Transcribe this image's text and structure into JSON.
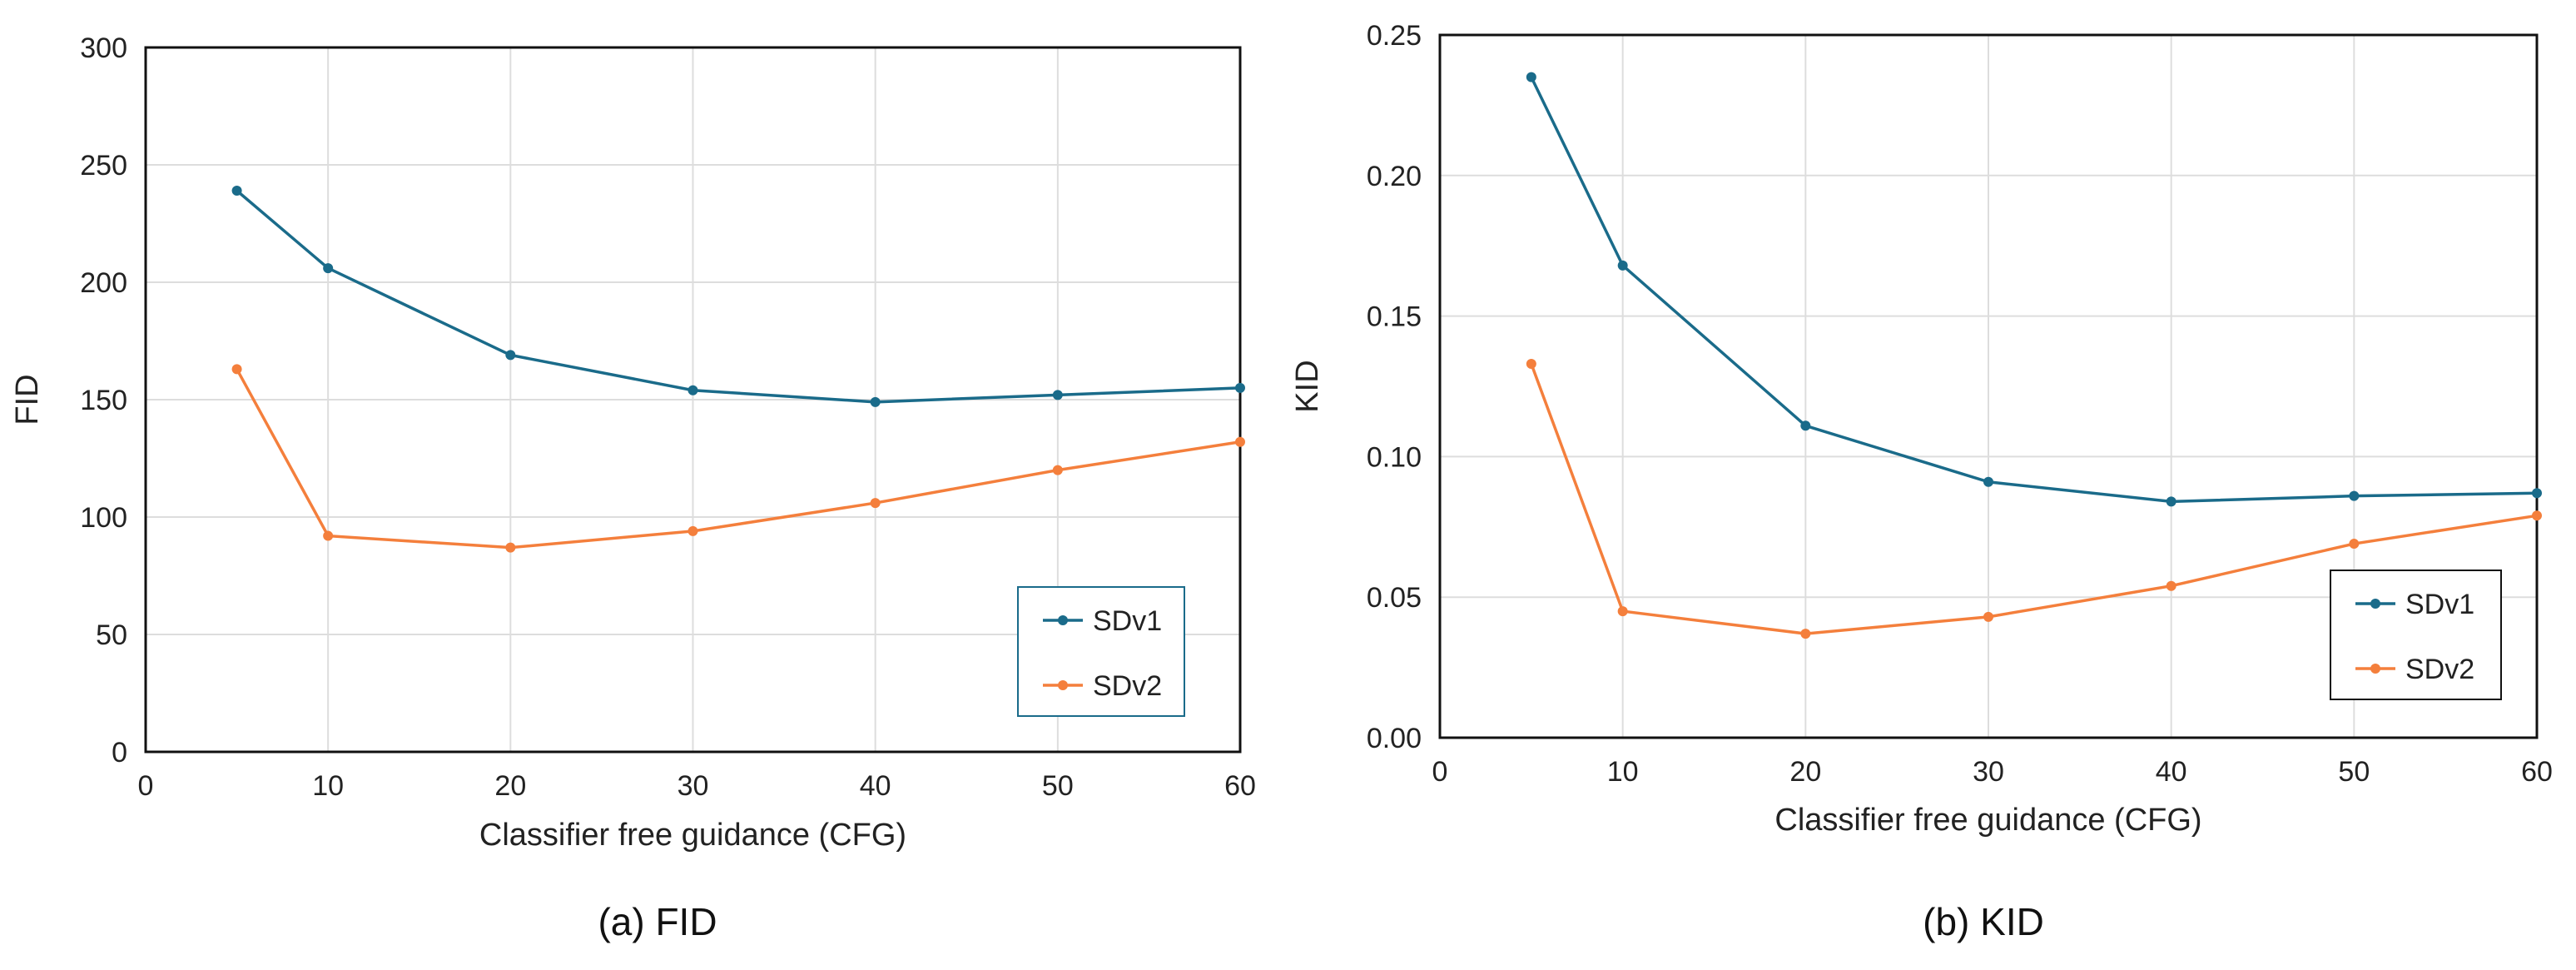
{
  "figure": {
    "captions": [
      "(a) FID",
      "(b) KID"
    ]
  },
  "colors": {
    "SDv1": "#1a6b8a",
    "SDv2": "#f47f3c",
    "grid": "#dddddd",
    "frame": "#111111",
    "legend_border_a": "#1a6b8a",
    "legend_border_b": "#111111"
  },
  "chart_data": [
    {
      "type": "line",
      "title": "",
      "caption": "(a) FID",
      "xlabel": "Classifier free guidance (CFG)",
      "ylabel": "FID",
      "xlim": [
        0,
        60
      ],
      "ylim": [
        0,
        300
      ],
      "xticks": [
        0,
        10,
        20,
        30,
        40,
        50,
        60
      ],
      "xtick_labels": [
        "0",
        "10",
        "20",
        "30",
        "40",
        "50",
        "60"
      ],
      "yticks": [
        0,
        50,
        100,
        150,
        200,
        250,
        300
      ],
      "ytick_labels": [
        "0",
        "50",
        "100",
        "150",
        "200",
        "250",
        "300"
      ],
      "grid": true,
      "legend_position": "bottom-right",
      "x": [
        5,
        10,
        20,
        30,
        40,
        50,
        60
      ],
      "series": [
        {
          "name": "SDv1",
          "values": [
            239,
            206,
            169,
            154,
            149,
            152,
            155
          ]
        },
        {
          "name": "SDv2",
          "values": [
            163,
            92,
            87,
            94,
            106,
            120,
            132
          ]
        }
      ]
    },
    {
      "type": "line",
      "title": "",
      "caption": "(b) KID",
      "xlabel": "Classifier free guidance (CFG)",
      "ylabel": "KID",
      "xlim": [
        0,
        60
      ],
      "ylim": [
        0,
        0.25
      ],
      "xticks": [
        0,
        10,
        20,
        30,
        40,
        50,
        60
      ],
      "xtick_labels": [
        "0",
        "10",
        "20",
        "30",
        "40",
        "50",
        "60"
      ],
      "yticks": [
        0,
        0.05,
        0.1,
        0.15,
        0.2,
        0.25
      ],
      "ytick_labels": [
        "0.00",
        "0.05",
        "0.10",
        "0.15",
        "0.20",
        "0.25"
      ],
      "grid": true,
      "legend_position": "bottom-right",
      "x": [
        5,
        10,
        20,
        30,
        40,
        50,
        60
      ],
      "series": [
        {
          "name": "SDv1",
          "values": [
            0.235,
            0.168,
            0.111,
            0.091,
            0.084,
            0.086,
            0.087
          ]
        },
        {
          "name": "SDv2",
          "values": [
            0.133,
            0.045,
            0.037,
            0.043,
            0.054,
            0.069,
            0.079
          ]
        }
      ]
    }
  ]
}
